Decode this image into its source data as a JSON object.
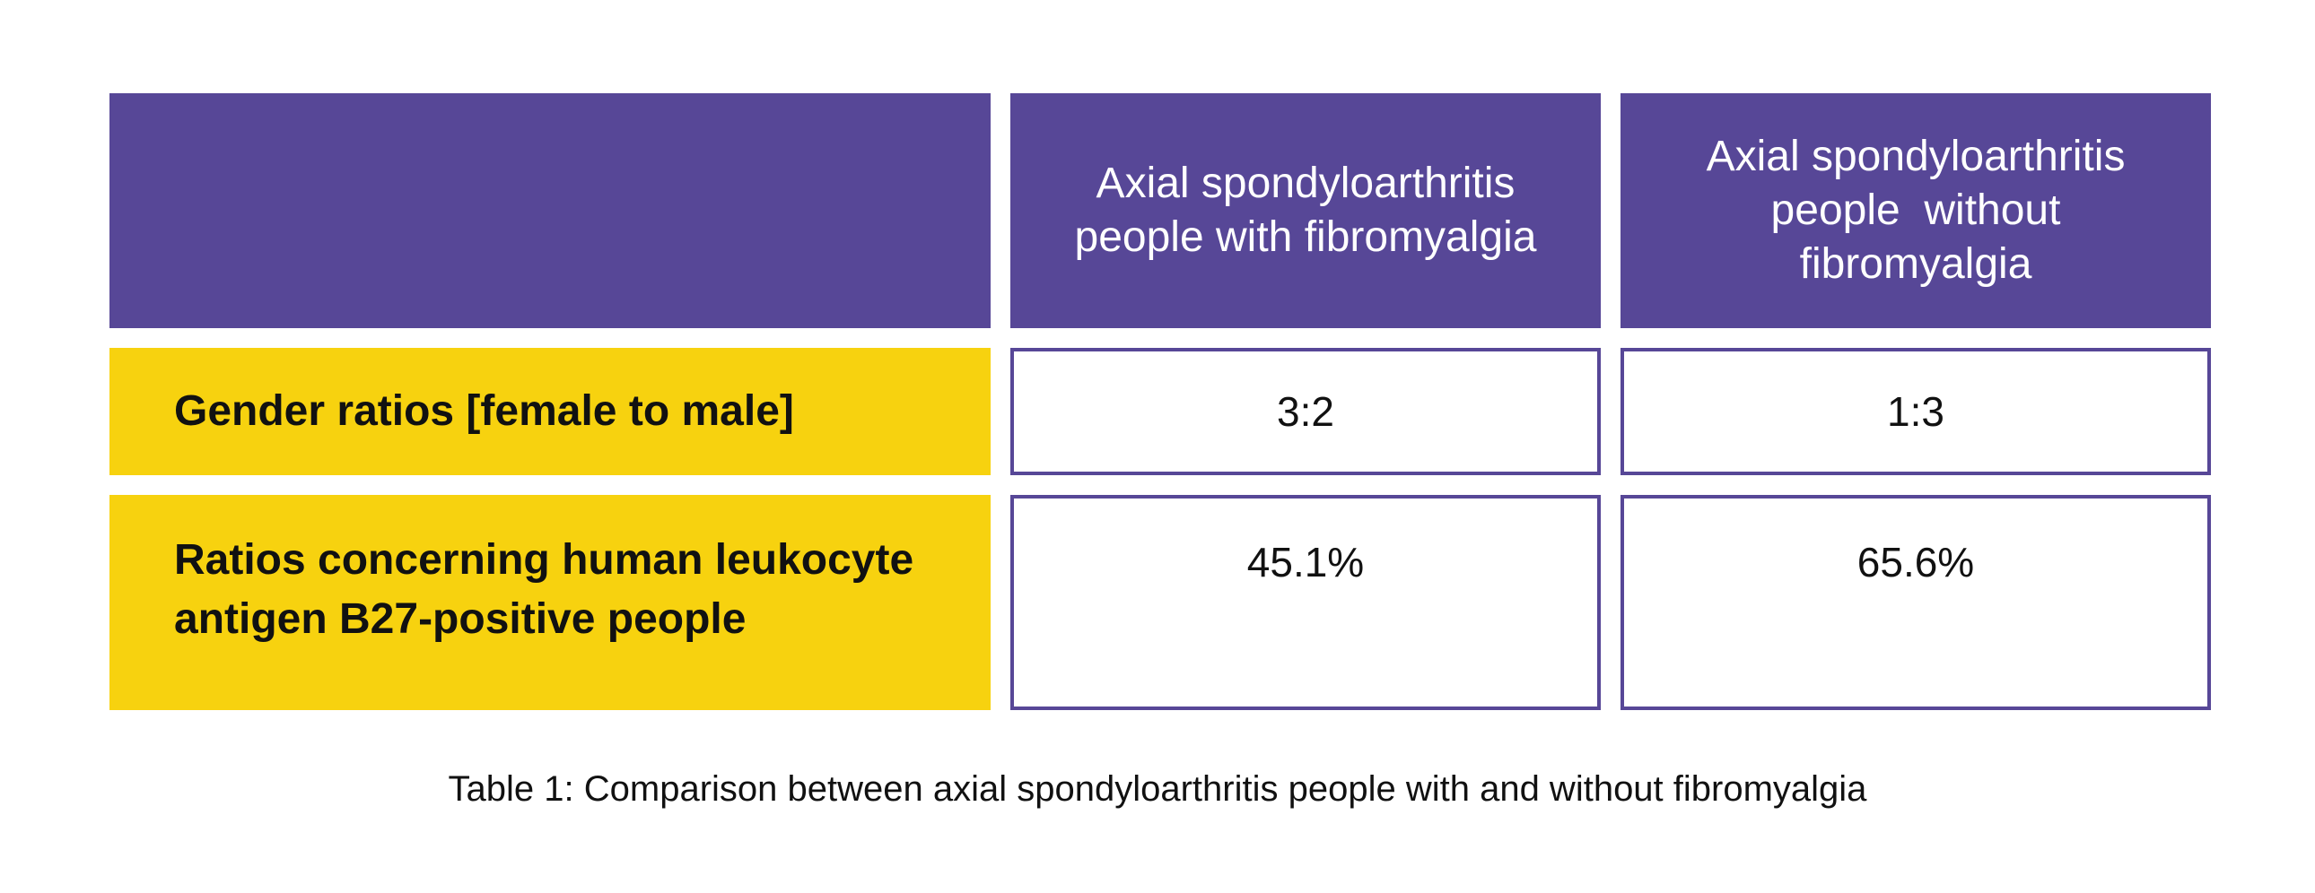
{
  "table": {
    "header_col1_lines": [
      "Axial spondyloarthritis",
      "people with fibromyalgia"
    ],
    "header_col2_lines": [
      "Axial spondyloarthritis",
      "people  without",
      "fibromyalgia"
    ],
    "rows": [
      {
        "label": "Gender ratios [female to male]",
        "col1": "3:2",
        "col2": "1:3"
      },
      {
        "label": "Ratios concerning human leukocyte antigen B27-positive people",
        "col1": "45.1%",
        "col2": "65.6%"
      }
    ]
  },
  "caption": "Table 1: Comparison between axial spondyloarthritis people with and without fibromyalgia",
  "colors": {
    "header_bg": "#574797",
    "label_bg": "#f7d20f",
    "border": "#574797"
  }
}
